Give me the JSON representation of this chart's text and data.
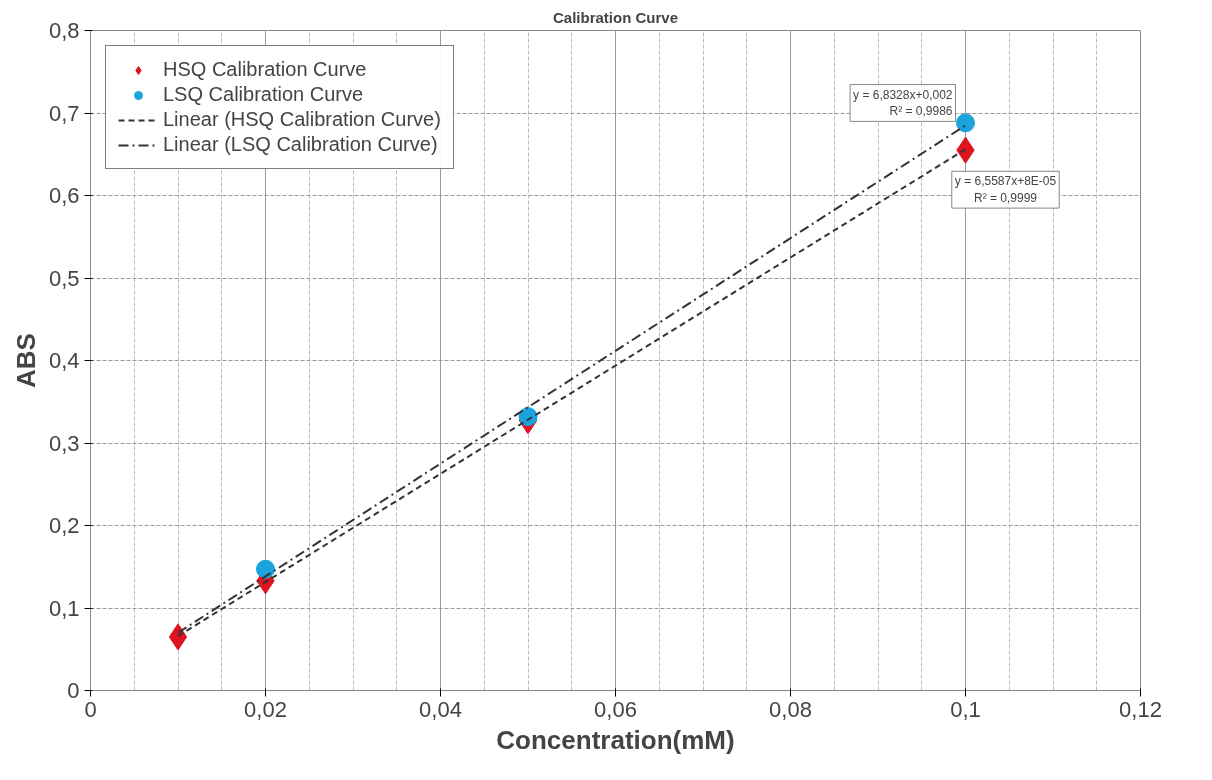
{
  "chart_data": {
    "type": "scatter",
    "title": "Calibration Curve",
    "xlabel": "Concentration(mM)",
    "ylabel": "ABS",
    "xlim": [
      0,
      0.12
    ],
    "ylim": [
      0,
      0.8
    ],
    "xticks": [
      {
        "value": 0,
        "label": "0"
      },
      {
        "value": 0.02,
        "label": "0,02"
      },
      {
        "value": 0.04,
        "label": "0,04"
      },
      {
        "value": 0.06,
        "label": "0,06"
      },
      {
        "value": 0.08,
        "label": "0,08"
      },
      {
        "value": 0.1,
        "label": "0,1"
      },
      {
        "value": 0.12,
        "label": "0,12"
      }
    ],
    "yticks": [
      {
        "value": 0,
        "label": "0"
      },
      {
        "value": 0.1,
        "label": "0,1"
      },
      {
        "value": 0.2,
        "label": "0,2"
      },
      {
        "value": 0.3,
        "label": "0,3"
      },
      {
        "value": 0.4,
        "label": "0,4"
      },
      {
        "value": 0.5,
        "label": "0,5"
      },
      {
        "value": 0.6,
        "label": "0,6"
      },
      {
        "value": 0.7,
        "label": "0,7"
      },
      {
        "value": 0.8,
        "label": "0,8"
      }
    ],
    "grid": true,
    "legend": "top left",
    "series": [
      {
        "name": "HSQ Calibration Curve",
        "marker": "diamond",
        "color": "#e0141e",
        "x": [
          0.01,
          0.02,
          0.05,
          0.1
        ],
        "values": [
          0.065,
          0.133,
          0.327,
          0.655
        ]
      },
      {
        "name": "LSQ Calibration Curve",
        "marker": "circle",
        "color": "#1aa3dd",
        "x": [
          0.02,
          0.05,
          0.1
        ],
        "values": [
          0.147,
          0.332,
          0.688
        ]
      },
      {
        "name": "Linear (HSQ Calibration Curve)",
        "type": "line",
        "line_style": "dashed",
        "color": "#333333",
        "x": [
          0.01,
          0.1
        ],
        "values": [
          0.066,
          0.656
        ]
      },
      {
        "name": "Linear (LSQ Calibration Curve)",
        "type": "line",
        "line_style": "dashdot",
        "color": "#333333",
        "x": [
          0.01,
          0.1
        ],
        "values": [
          0.07,
          0.685
        ]
      }
    ],
    "annotations": [
      {
        "text": "y = 6,8328x+0,002\nR² = 0,9986",
        "x": 0.1,
        "y": 0.685
      },
      {
        "text": "y = 6,5587x+8E-05\nR² = 0,9999",
        "x": 0.1,
        "y": 0.656
      }
    ]
  }
}
